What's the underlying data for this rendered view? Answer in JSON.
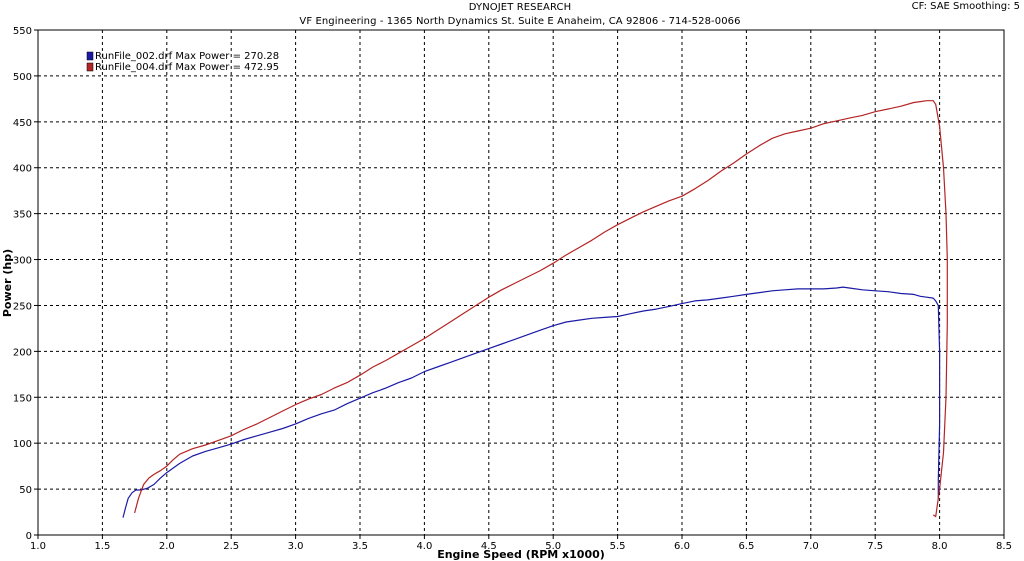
{
  "header": {
    "title": "DYNOJET RESEARCH",
    "subtitle": "VF Engineering - 1365 North Dynamics St. Suite E Anaheim, CA 92806 - 714-528-0066",
    "settings": "CF: SAE  Smoothing: 5"
  },
  "chart_data": {
    "type": "line",
    "xlabel": "Engine Speed (RPM x1000)",
    "ylabel": "Power (hp)",
    "xlim": [
      1.0,
      8.5
    ],
    "ylim": [
      0,
      550
    ],
    "xticks": [
      "1.0",
      "1.5",
      "2.0",
      "2.5",
      "3.0",
      "3.5",
      "4.0",
      "4.5",
      "5.0",
      "5.5",
      "6.0",
      "6.5",
      "7.0",
      "7.5",
      "8.0",
      "8.5"
    ],
    "yticks": [
      "0",
      "50",
      "100",
      "150",
      "200",
      "250",
      "300",
      "350",
      "400",
      "450",
      "500",
      "550"
    ],
    "grid": true,
    "legend_position": "top-left",
    "series": [
      {
        "name": "RunFile_002.drf Max Power = 270.28",
        "color": "#1a1aa6",
        "x": [
          1.66,
          1.68,
          1.7,
          1.73,
          1.76,
          1.8,
          1.85,
          1.9,
          1.95,
          2.0,
          2.1,
          2.2,
          2.3,
          2.4,
          2.5,
          2.6,
          2.7,
          2.8,
          2.9,
          3.0,
          3.1,
          3.2,
          3.3,
          3.4,
          3.5,
          3.6,
          3.7,
          3.8,
          3.9,
          4.0,
          4.1,
          4.2,
          4.3,
          4.4,
          4.5,
          4.6,
          4.7,
          4.8,
          4.9,
          5.0,
          5.1,
          5.2,
          5.3,
          5.4,
          5.5,
          5.6,
          5.7,
          5.8,
          5.9,
          6.0,
          6.1,
          6.2,
          6.3,
          6.4,
          6.5,
          6.6,
          6.7,
          6.8,
          6.9,
          7.0,
          7.1,
          7.2,
          7.25,
          7.3,
          7.4,
          7.5,
          7.6,
          7.7,
          7.8,
          7.85,
          7.9,
          7.95,
          7.97,
          7.99,
          8.0,
          8.0,
          7.99,
          7.99
        ],
        "values": [
          19,
          30,
          40,
          46,
          49,
          49,
          51,
          55,
          62,
          68,
          78,
          86,
          91,
          95,
          99,
          104,
          108,
          112,
          116,
          121,
          127,
          132,
          136,
          143,
          149,
          155,
          160,
          166,
          171,
          178,
          183,
          188,
          193,
          198,
          203,
          208,
          213,
          218,
          223,
          228,
          232,
          234,
          236,
          237,
          238,
          241,
          244,
          246,
          249,
          252,
          255,
          256,
          258,
          260,
          262,
          264,
          266,
          267,
          268,
          268,
          268,
          269,
          270,
          269,
          267,
          266,
          265,
          263,
          262,
          260,
          259,
          258,
          255,
          250,
          200,
          120,
          60,
          40
        ]
      },
      {
        "name": "RunFile_004.drf Max Power = 472.95",
        "color": "#b42424",
        "x": [
          1.75,
          1.78,
          1.82,
          1.86,
          1.9,
          1.95,
          2.0,
          2.05,
          2.1,
          2.2,
          2.3,
          2.4,
          2.5,
          2.6,
          2.7,
          2.8,
          2.9,
          3.0,
          3.1,
          3.2,
          3.3,
          3.4,
          3.5,
          3.6,
          3.7,
          3.8,
          3.9,
          4.0,
          4.1,
          4.2,
          4.3,
          4.4,
          4.5,
          4.6,
          4.7,
          4.8,
          4.9,
          5.0,
          5.1,
          5.2,
          5.3,
          5.4,
          5.5,
          5.6,
          5.7,
          5.8,
          5.9,
          6.0,
          6.1,
          6.2,
          6.3,
          6.4,
          6.5,
          6.6,
          6.7,
          6.8,
          6.9,
          7.0,
          7.1,
          7.2,
          7.3,
          7.4,
          7.5,
          7.6,
          7.7,
          7.8,
          7.85,
          7.9,
          7.95,
          7.97,
          8.0,
          8.03,
          8.05,
          8.06,
          8.06,
          8.05,
          8.03,
          8.0,
          7.97,
          7.95
        ],
        "values": [
          24,
          40,
          55,
          62,
          66,
          70,
          75,
          82,
          88,
          94,
          98,
          103,
          108,
          115,
          121,
          128,
          135,
          142,
          148,
          153,
          160,
          166,
          174,
          183,
          190,
          198,
          206,
          214,
          223,
          232,
          241,
          250,
          259,
          267,
          274,
          281,
          288,
          296,
          305,
          313,
          321,
          330,
          338,
          345,
          352,
          358,
          364,
          369,
          377,
          386,
          396,
          405,
          415,
          424,
          432,
          437,
          440,
          443,
          448,
          451,
          454,
          457,
          461,
          464,
          467,
          471,
          472,
          473,
          473,
          469,
          445,
          400,
          350,
          300,
          230,
          150,
          90,
          50,
          20,
          22
        ]
      }
    ]
  }
}
